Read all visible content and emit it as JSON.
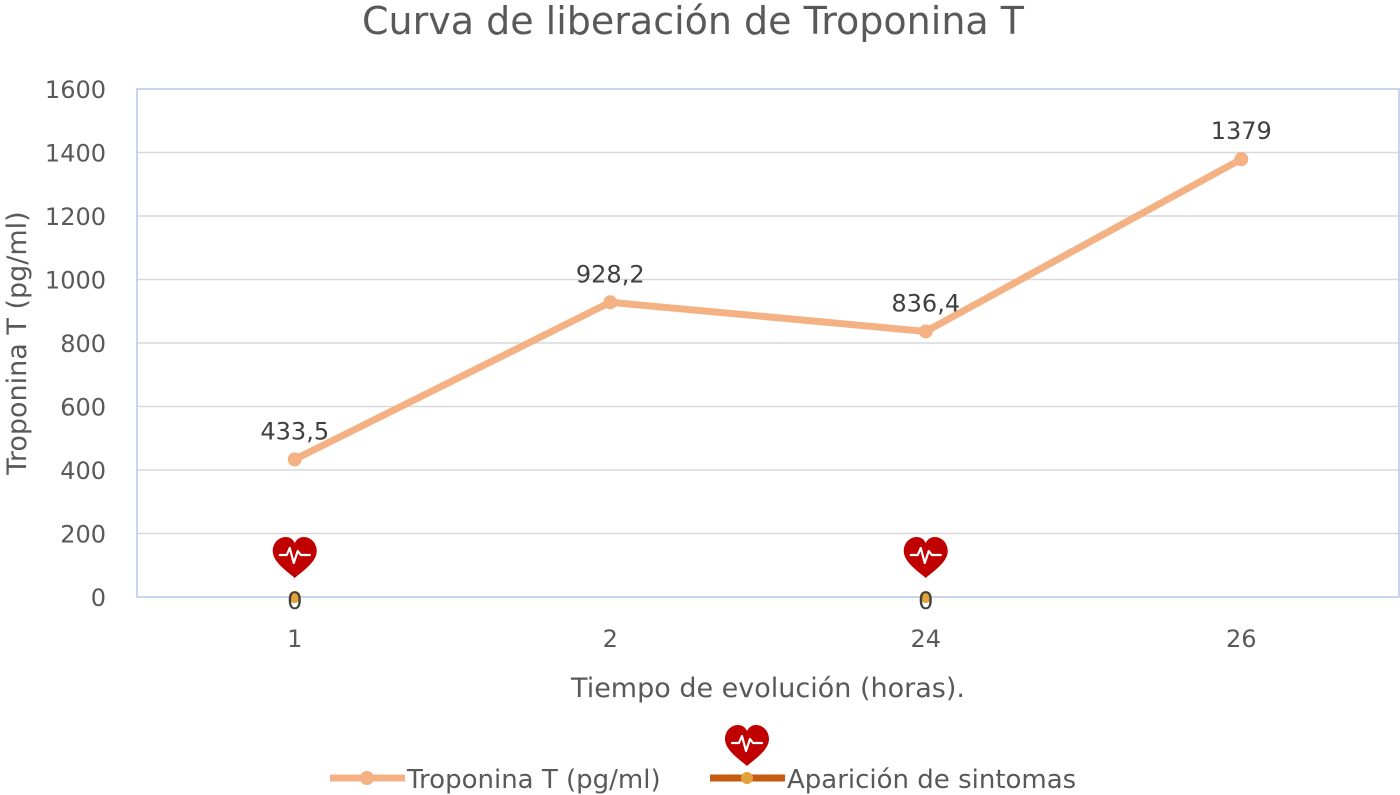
{
  "chart_data": {
    "type": "line",
    "title": "Curva de liberación de Troponina T",
    "xlabel": "Tiempo de evolución (horas).",
    "ylabel": "Troponina T (pg/ml)",
    "categories": [
      "1",
      "2",
      "24",
      "26"
    ],
    "ylim": [
      0,
      1600
    ],
    "y_ticks": [
      0,
      200,
      400,
      600,
      800,
      1000,
      1200,
      1400,
      1600
    ],
    "grid": true,
    "legend_position": "bottom",
    "series": [
      {
        "name": "Troponina T (pg/ml)",
        "values": [
          433.5,
          928.2,
          836.4,
          1379
        ],
        "labels": [
          "433,5",
          "928,2",
          "836,4",
          "1379"
        ],
        "color": "#f4b183",
        "marker": "circle"
      },
      {
        "name": "Aparición de sintomas",
        "values": [
          0,
          null,
          0,
          null
        ],
        "labels": [
          "0",
          "",
          "0",
          ""
        ],
        "color": "#c55a11",
        "marker": "heart-icon",
        "marker_color": "#c00000"
      }
    ]
  }
}
